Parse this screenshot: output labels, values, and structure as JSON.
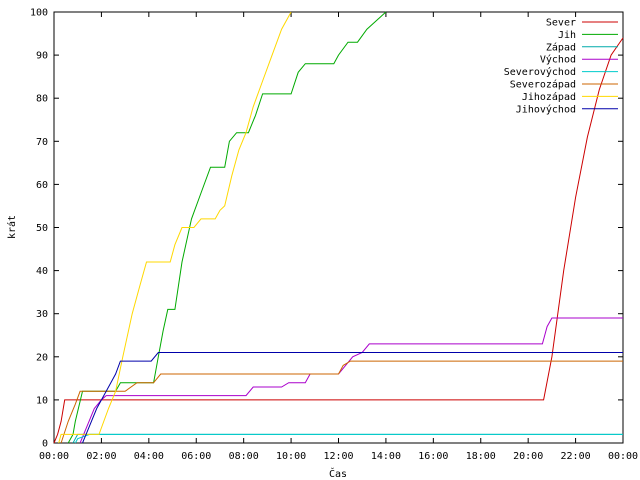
{
  "chart_data": {
    "type": "line",
    "title": "",
    "xlabel": "Čas",
    "ylabel": "krát",
    "ylim": [
      0,
      100
    ],
    "xlim": [
      0,
      24
    ],
    "x_unit": "hours",
    "y_ticks": [
      "0",
      "10",
      "20",
      "30",
      "40",
      "50",
      "60",
      "70",
      "80",
      "90",
      "100"
    ],
    "x_ticks": [
      "00:00",
      "02:00",
      "04:00",
      "06:00",
      "08:00",
      "10:00",
      "12:00",
      "14:00",
      "16:00",
      "18:00",
      "20:00",
      "22:00",
      "00:00"
    ],
    "legend_position": "top-right",
    "series": [
      {
        "name": "Sever",
        "color": "#cc0000",
        "points": [
          [
            0,
            0
          ],
          [
            0.15,
            2
          ],
          [
            0.3,
            5
          ],
          [
            0.45,
            10
          ],
          [
            20.65,
            10
          ],
          [
            21.0,
            20
          ],
          [
            21.5,
            40
          ],
          [
            22.0,
            57
          ],
          [
            22.5,
            71
          ],
          [
            23.0,
            82
          ],
          [
            23.5,
            90
          ],
          [
            24,
            94
          ]
        ]
      },
      {
        "name": "Jih",
        "color": "#00aa00",
        "points": [
          [
            0.6,
            0
          ],
          [
            0.8,
            2
          ],
          [
            0.9,
            5
          ],
          [
            1.2,
            12
          ],
          [
            2.6,
            12
          ],
          [
            2.8,
            14
          ],
          [
            4.2,
            14
          ],
          [
            4.4,
            20
          ],
          [
            4.6,
            26
          ],
          [
            4.8,
            31
          ],
          [
            5.1,
            31
          ],
          [
            5.4,
            42
          ],
          [
            5.8,
            52
          ],
          [
            6.2,
            58
          ],
          [
            6.6,
            64
          ],
          [
            7.2,
            64
          ],
          [
            7.4,
            70
          ],
          [
            7.7,
            72
          ],
          [
            8.2,
            72
          ],
          [
            8.5,
            76
          ],
          [
            8.8,
            81
          ],
          [
            10.0,
            81
          ],
          [
            10.3,
            86
          ],
          [
            10.6,
            88
          ],
          [
            11.8,
            88
          ],
          [
            12.0,
            90
          ],
          [
            12.4,
            93
          ],
          [
            12.8,
            93
          ],
          [
            13.2,
            96
          ],
          [
            13.6,
            98
          ],
          [
            14.0,
            100
          ]
        ]
      },
      {
        "name": "Západ",
        "color": "#00aaaa",
        "points": [
          [
            0.8,
            0
          ],
          [
            0.9,
            1
          ],
          [
            1.0,
            2
          ],
          [
            24,
            2
          ]
        ]
      },
      {
        "name": "Východ",
        "color": "#aa00cc",
        "points": [
          [
            1.1,
            0
          ],
          [
            1.4,
            4
          ],
          [
            1.7,
            8
          ],
          [
            2.0,
            10
          ],
          [
            2.2,
            11
          ],
          [
            8.1,
            11
          ],
          [
            8.4,
            13
          ],
          [
            9.6,
            13
          ],
          [
            9.9,
            14
          ],
          [
            10.6,
            14
          ],
          [
            10.8,
            16
          ],
          [
            12.0,
            16
          ],
          [
            12.3,
            18
          ],
          [
            12.6,
            20
          ],
          [
            13.0,
            21
          ],
          [
            13.3,
            23
          ],
          [
            20.6,
            23
          ],
          [
            20.8,
            27
          ],
          [
            21.0,
            29
          ],
          [
            24,
            29
          ]
        ]
      },
      {
        "name": "Severovýchod",
        "color": "#00cccc",
        "points": [
          [
            0.9,
            0
          ],
          [
            1.0,
            1
          ],
          [
            1.5,
            2
          ],
          [
            24,
            2
          ]
        ]
      },
      {
        "name": "Severozápad",
        "color": "#cc6600",
        "points": [
          [
            0.3,
            0
          ],
          [
            0.6,
            5
          ],
          [
            0.9,
            9
          ],
          [
            1.1,
            12
          ],
          [
            3.0,
            12
          ],
          [
            3.5,
            14
          ],
          [
            4.2,
            14
          ],
          [
            4.5,
            16
          ],
          [
            12.0,
            16
          ],
          [
            12.2,
            18
          ],
          [
            12.5,
            19
          ],
          [
            24,
            19
          ]
        ]
      },
      {
        "name": "Jihozápad",
        "color": "#ffd800",
        "points": [
          [
            0.2,
            0
          ],
          [
            0.3,
            2
          ],
          [
            1.9,
            2
          ],
          [
            2.3,
            8
          ],
          [
            2.6,
            12
          ],
          [
            2.9,
            20
          ],
          [
            3.3,
            30
          ],
          [
            3.6,
            36
          ],
          [
            3.9,
            42
          ],
          [
            4.9,
            42
          ],
          [
            5.1,
            46
          ],
          [
            5.4,
            50
          ],
          [
            5.9,
            50
          ],
          [
            6.2,
            52
          ],
          [
            6.8,
            52
          ],
          [
            7.0,
            54
          ],
          [
            7.2,
            55
          ],
          [
            7.5,
            62
          ],
          [
            7.8,
            68
          ],
          [
            8.1,
            72
          ],
          [
            8.4,
            78
          ],
          [
            8.8,
            84
          ],
          [
            9.2,
            90
          ],
          [
            9.6,
            96
          ],
          [
            10.0,
            100
          ]
        ]
      },
      {
        "name": "Jihovýchod",
        "color": "#0000aa",
        "points": [
          [
            1.2,
            0
          ],
          [
            1.5,
            4
          ],
          [
            1.8,
            8
          ],
          [
            2.2,
            12
          ],
          [
            2.6,
            16
          ],
          [
            2.8,
            19
          ],
          [
            4.1,
            19
          ],
          [
            4.4,
            21
          ],
          [
            24,
            21
          ]
        ]
      }
    ]
  }
}
